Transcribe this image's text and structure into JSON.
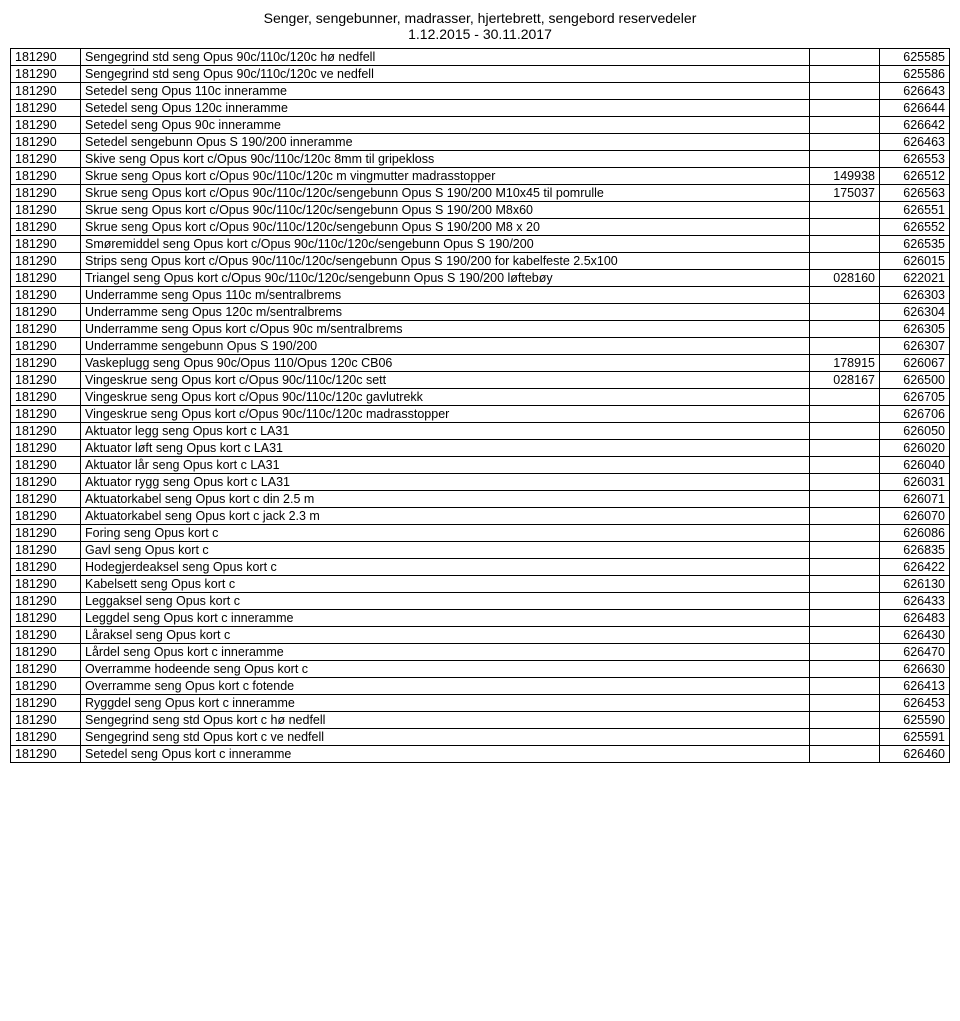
{
  "header": {
    "line1": "Senger, sengebunner, madrasser, hjertebrett, sengebord reservedeler",
    "line2": "1.12.2015 - 30.11.2017"
  },
  "rows": [
    {
      "c0": "181290",
      "c1": "Sengegrind std seng Opus 90c/110c/120c hø nedfell",
      "c2": "",
      "c3": "625585"
    },
    {
      "c0": "181290",
      "c1": "Sengegrind std seng Opus 90c/110c/120c ve nedfell",
      "c2": "",
      "c3": "625586"
    },
    {
      "c0": "181290",
      "c1": "Setedel seng Opus 110c inneramme",
      "c2": "",
      "c3": "626643"
    },
    {
      "c0": "181290",
      "c1": "Setedel seng Opus 120c inneramme",
      "c2": "",
      "c3": "626644"
    },
    {
      "c0": "181290",
      "c1": "Setedel seng Opus 90c inneramme",
      "c2": "",
      "c3": "626642"
    },
    {
      "c0": "181290",
      "c1": "Setedel sengebunn Opus S 190/200 inneramme",
      "c2": "",
      "c3": "626463"
    },
    {
      "c0": "181290",
      "c1": "Skive seng Opus kort c/Opus 90c/110c/120c 8mm til gripekloss",
      "c2": "",
      "c3": "626553"
    },
    {
      "c0": "181290",
      "c1": "Skrue seng Opus kort c/Opus 90c/110c/120c m vingmutter madrasstopper",
      "c2": "149938",
      "c3": "626512"
    },
    {
      "c0": "181290",
      "c1": "Skrue seng Opus kort c/Opus 90c/110c/120c/sengebunn Opus S 190/200 M10x45 til pomrulle",
      "c2": "175037",
      "c3": "626563"
    },
    {
      "c0": "181290",
      "c1": "Skrue seng Opus kort c/Opus 90c/110c/120c/sengebunn Opus S 190/200 M8x60",
      "c2": "",
      "c3": "626551"
    },
    {
      "c0": "181290",
      "c1": "Skrue seng Opus kort c/Opus 90c/110c/120c/sengebunn Opus S 190/200 M8 x 20",
      "c2": "",
      "c3": "626552"
    },
    {
      "c0": "181290",
      "c1": "Smøremiddel seng Opus kort c/Opus 90c/110c/120c/sengebunn Opus S 190/200",
      "c2": "",
      "c3": "626535"
    },
    {
      "c0": "181290",
      "c1": "Strips seng Opus kort c/Opus 90c/110c/120c/sengebunn Opus S 190/200 for kabelfeste 2.5x100",
      "c2": "",
      "c3": "626015"
    },
    {
      "c0": "181290",
      "c1": "Triangel seng Opus kort c/Opus 90c/110c/120c/sengebunn Opus S 190/200 løftebøy",
      "c2": "028160",
      "c3": "622021"
    },
    {
      "c0": "181290",
      "c1": "Underramme seng Opus 110c m/sentralbrems",
      "c2": "",
      "c3": "626303"
    },
    {
      "c0": "181290",
      "c1": "Underramme seng Opus 120c m/sentralbrems",
      "c2": "",
      "c3": "626304"
    },
    {
      "c0": "181290",
      "c1": "Underramme seng Opus kort c/Opus 90c m/sentralbrems",
      "c2": "",
      "c3": "626305"
    },
    {
      "c0": "181290",
      "c1": "Underramme sengebunn Opus S 190/200",
      "c2": "",
      "c3": "626307"
    },
    {
      "c0": "181290",
      "c1": "Vaskeplugg seng Opus 90c/Opus 110/Opus 120c CB06",
      "c2": "178915",
      "c3": "626067"
    },
    {
      "c0": "181290",
      "c1": "Vingeskrue seng Opus kort c/Opus 90c/110c/120c sett",
      "c2": "028167",
      "c3": "626500"
    },
    {
      "c0": "181290",
      "c1": "Vingeskrue seng Opus kort c/Opus 90c/110c/120c gavlutrekk",
      "c2": "",
      "c3": "626705"
    },
    {
      "c0": "181290",
      "c1": "Vingeskrue seng Opus kort c/Opus 90c/110c/120c madrasstopper",
      "c2": "",
      "c3": "626706"
    },
    {
      "c0": "181290",
      "c1": "Aktuator legg seng Opus kort c LA31",
      "c2": "",
      "c3": "626050"
    },
    {
      "c0": "181290",
      "c1": "Aktuator løft seng Opus kort c LA31",
      "c2": "",
      "c3": "626020"
    },
    {
      "c0": "181290",
      "c1": "Aktuator lår seng Opus kort c LA31",
      "c2": "",
      "c3": "626040"
    },
    {
      "c0": "181290",
      "c1": "Aktuator rygg seng Opus kort c LA31",
      "c2": "",
      "c3": "626031"
    },
    {
      "c0": "181290",
      "c1": "Aktuatorkabel seng Opus kort c din 2.5 m",
      "c2": "",
      "c3": "626071"
    },
    {
      "c0": "181290",
      "c1": "Aktuatorkabel seng Opus kort c jack 2.3 m",
      "c2": "",
      "c3": "626070"
    },
    {
      "c0": "181290",
      "c1": "Foring seng Opus kort c",
      "c2": "",
      "c3": "626086"
    },
    {
      "c0": "181290",
      "c1": "Gavl seng Opus kort c",
      "c2": "",
      "c3": "626835"
    },
    {
      "c0": "181290",
      "c1": "Hodegjerdeaksel seng Opus kort c",
      "c2": "",
      "c3": "626422"
    },
    {
      "c0": "181290",
      "c1": "Kabelsett seng Opus kort c",
      "c2": "",
      "c3": "626130"
    },
    {
      "c0": "181290",
      "c1": "Leggaksel seng Opus kort c",
      "c2": "",
      "c3": "626433"
    },
    {
      "c0": "181290",
      "c1": "Leggdel seng Opus kort c inneramme",
      "c2": "",
      "c3": "626483"
    },
    {
      "c0": "181290",
      "c1": "Låraksel seng Opus kort c",
      "c2": "",
      "c3": "626430"
    },
    {
      "c0": "181290",
      "c1": "Lårdel seng Opus kort c inneramme",
      "c2": "",
      "c3": "626470"
    },
    {
      "c0": "181290",
      "c1": "Overramme hodeende seng Opus kort c",
      "c2": "",
      "c3": "626630"
    },
    {
      "c0": "181290",
      "c1": "Overramme seng Opus kort c fotende",
      "c2": "",
      "c3": "626413"
    },
    {
      "c0": "181290",
      "c1": "Ryggdel seng Opus kort c inneramme",
      "c2": "",
      "c3": "626453"
    },
    {
      "c0": "181290",
      "c1": "Sengegrind seng std Opus kort c hø nedfell",
      "c2": "",
      "c3": "625590"
    },
    {
      "c0": "181290",
      "c1": "Sengegrind seng std Opus kort c ve nedfell",
      "c2": "",
      "c3": "625591"
    },
    {
      "c0": "181290",
      "c1": "Setedel seng Opus kort c inneramme",
      "c2": "",
      "c3": "626460"
    }
  ]
}
